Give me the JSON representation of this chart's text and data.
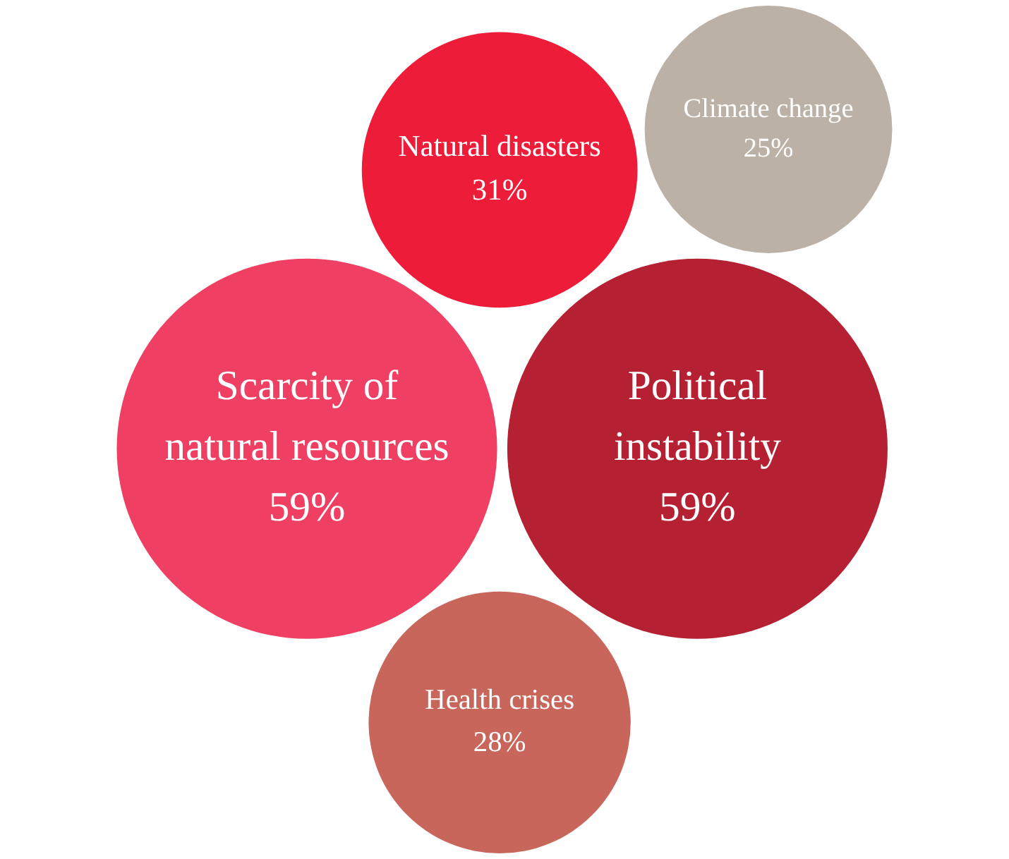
{
  "chart_data": {
    "type": "other",
    "categories": [
      "Political instability",
      "Natural disasters",
      "Climate change",
      "Health crises",
      "Scarcity of natural resources"
    ],
    "values": [
      59,
      31,
      25,
      28,
      59
    ],
    "value_labels": [
      "59%",
      "31%",
      "25%",
      "28%",
      "59%"
    ],
    "colors": [
      "#b52033",
      "#ed1c38",
      "#bcb1a7",
      "#c8665c",
      "#ef4063"
    ]
  }
}
